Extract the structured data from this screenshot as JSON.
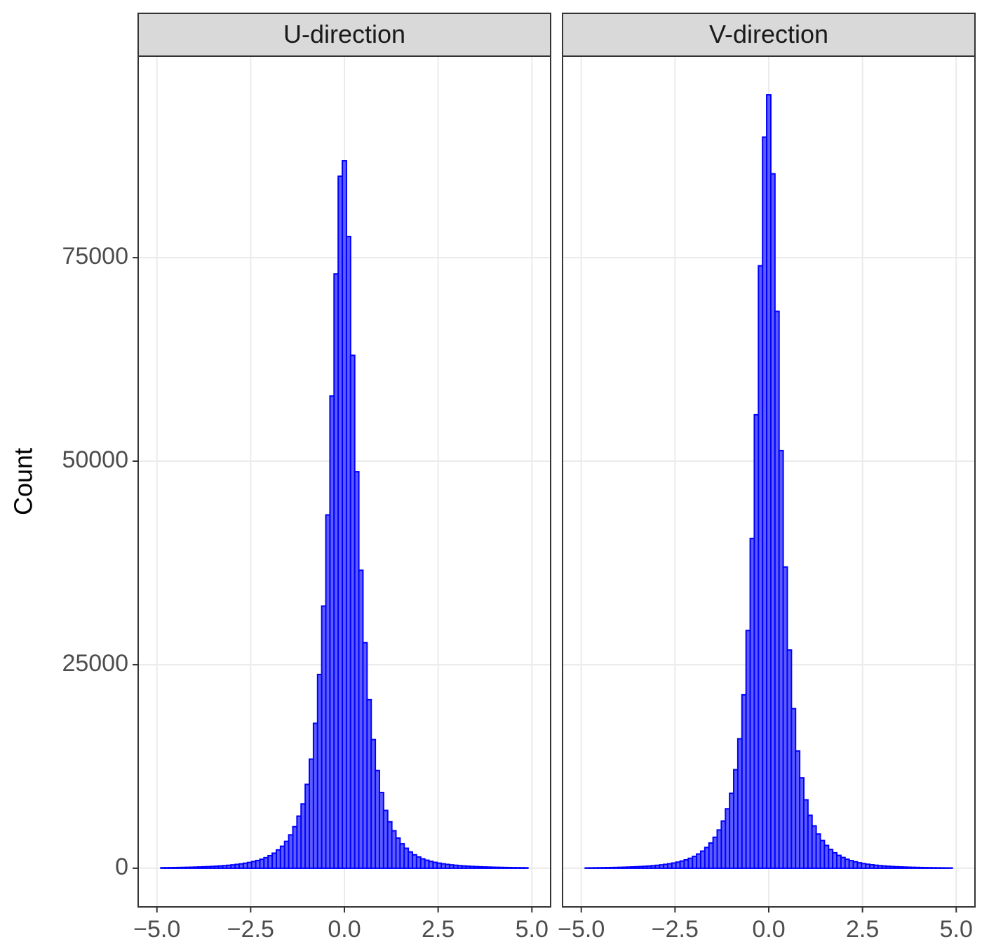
{
  "chart_data": [
    {
      "type": "histogram",
      "title": "U-direction",
      "y_label": "Count",
      "bins": [
        -4.895,
        -4.785,
        -4.675,
        -4.565,
        -4.455,
        -4.345,
        -4.235,
        -4.125,
        -4.015,
        -3.905,
        -3.795,
        -3.685,
        -3.575,
        -3.465,
        -3.355,
        -3.245,
        -3.135,
        -3.025,
        -2.915,
        -2.805,
        -2.695,
        -2.585,
        -2.475,
        -2.365,
        -2.255,
        -2.145,
        -2.035,
        -1.925,
        -1.815,
        -1.705,
        -1.595,
        -1.485,
        -1.375,
        -1.265,
        -1.155,
        -1.045,
        -0.935,
        -0.825,
        -0.715,
        -0.605,
        -0.495,
        -0.385,
        -0.275,
        -0.165,
        -0.055,
        0.055,
        0.165,
        0.275,
        0.385,
        0.495,
        0.605,
        0.715,
        0.825,
        0.935,
        1.045,
        1.155,
        1.265,
        1.375,
        1.485,
        1.595,
        1.705,
        1.815,
        1.925,
        2.035,
        2.145,
        2.255,
        2.365,
        2.475,
        2.585,
        2.695,
        2.805,
        2.915,
        3.025,
        3.135,
        3.245,
        3.355,
        3.465,
        3.575,
        3.685,
        3.795,
        3.905,
        4.015,
        4.125,
        4.235,
        4.345,
        4.455,
        4.565,
        4.675,
        4.785,
        4.895
      ],
      "values": [
        60,
        66,
        73,
        81,
        90,
        100,
        112,
        125,
        140,
        156,
        175,
        196,
        220,
        248,
        280,
        318,
        360,
        410,
        470,
        535,
        615,
        710,
        820,
        950,
        1100,
        1300,
        1550,
        1850,
        2250,
        2700,
        3300,
        4100,
        5100,
        6400,
        7900,
        10300,
        13400,
        17800,
        23800,
        32200,
        43400,
        58000,
        73000,
        85000,
        86900,
        77600,
        63000,
        48700,
        36600,
        27700,
        20700,
        15800,
        12000,
        9300,
        7100,
        5700,
        4600,
        3700,
        3000,
        2450,
        2000,
        1650,
        1380,
        1150,
        980,
        840,
        720,
        620,
        540,
        470,
        410,
        360,
        315,
        280,
        248,
        220,
        196,
        175,
        156,
        140,
        125,
        112,
        100,
        90,
        81,
        73,
        66,
        60,
        54
      ],
      "color": "#0000ff",
      "fill": "#5c5cff",
      "xlim": [
        -5.5,
        5.5
      ],
      "xticks": [
        {
          "value": -5,
          "label": "−5.0"
        },
        {
          "value": -2.5,
          "label": "−2.5"
        },
        {
          "value": 0,
          "label": "0.0"
        },
        2.5,
        {
          "value": 5,
          "label": "5.0"
        }
      ],
      "ylim": [
        -4750,
        99750
      ],
      "yticks": [
        0,
        25000,
        50000,
        75000
      ],
      "grid": true
    },
    {
      "type": "histogram",
      "title": "V-direction",
      "bins": [
        -4.895,
        -4.785,
        -4.675,
        -4.565,
        -4.455,
        -4.345,
        -4.235,
        -4.125,
        -4.015,
        -3.905,
        -3.795,
        -3.685,
        -3.575,
        -3.465,
        -3.355,
        -3.245,
        -3.135,
        -3.025,
        -2.915,
        -2.805,
        -2.695,
        -2.585,
        -2.475,
        -2.365,
        -2.255,
        -2.145,
        -2.035,
        -1.925,
        -1.815,
        -1.705,
        -1.595,
        -1.485,
        -1.375,
        -1.265,
        -1.155,
        -1.045,
        -0.935,
        -0.825,
        -0.715,
        -0.605,
        -0.495,
        -0.385,
        -0.275,
        -0.165,
        -0.055,
        0.055,
        0.165,
        0.275,
        0.385,
        0.495,
        0.605,
        0.715,
        0.825,
        0.935,
        1.045,
        1.155,
        1.265,
        1.375,
        1.485,
        1.595,
        1.705,
        1.815,
        1.925,
        2.035,
        2.145,
        2.255,
        2.365,
        2.475,
        2.585,
        2.695,
        2.805,
        2.915,
        3.025,
        3.135,
        3.245,
        3.355,
        3.465,
        3.575,
        3.685,
        3.795,
        3.905,
        4.015,
        4.125,
        4.235,
        4.345,
        4.455,
        4.565,
        4.675,
        4.785,
        4.895
      ],
      "values": [
        39,
        44,
        50,
        57,
        65,
        74,
        84,
        95,
        108,
        123,
        140,
        159,
        181,
        207,
        236,
        270,
        310,
        355,
        410,
        475,
        550,
        640,
        750,
        880,
        1030,
        1220,
        1450,
        1750,
        2100,
        2550,
        3100,
        3800,
        4700,
        5800,
        7300,
        9200,
        12100,
        15900,
        21300,
        29200,
        40500,
        55700,
        74000,
        89800,
        95000,
        85300,
        68400,
        51300,
        37000,
        26800,
        19600,
        14400,
        11100,
        8400,
        6500,
        5200,
        4200,
        3400,
        2800,
        2300,
        1900,
        1580,
        1320,
        1100,
        930,
        790,
        670,
        570,
        490,
        420,
        365,
        315,
        275,
        240,
        210,
        184,
        161,
        142,
        125,
        110,
        97,
        85,
        75,
        66,
        58,
        51,
        45,
        40,
        35
      ],
      "color": "#0000ff",
      "fill": "#5c5cff",
      "xlim": [
        -5.5,
        5.5
      ],
      "xticks": [
        {
          "value": -5,
          "label": "−5.0"
        },
        {
          "value": -2.5,
          "label": "−2.5"
        },
        {
          "value": 0,
          "label": "0.0"
        },
        2.5,
        {
          "value": 5,
          "label": "5.0"
        }
      ],
      "ylim": [
        -4750,
        99750
      ],
      "yticks": [
        0,
        25000,
        50000,
        75000
      ],
      "grid": true
    }
  ]
}
